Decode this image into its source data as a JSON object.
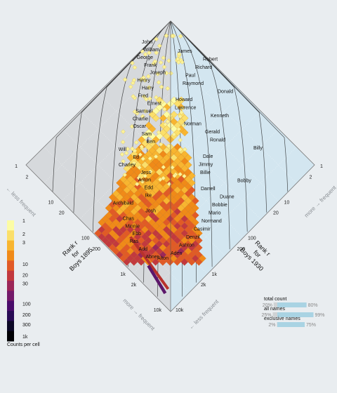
{
  "left_axis": {
    "title_line1": "Rank r",
    "title_line2": "for",
    "title_line3": "Boys 1895",
    "dir_top": "← less frequent",
    "dir_bottom": "more → frequent"
  },
  "right_axis": {
    "title_line1": "Rank r",
    "title_line2": "for",
    "title_line3": "Boys 1930",
    "dir_top": "more → frequent",
    "dir_bottom": "← less frequent"
  },
  "colors": {
    "left_panel": "#d6d9dc",
    "right_panel": "#d3e6f0",
    "balance_bar": "#a9d3e3",
    "balance_rest": "#cfd2d4",
    "marker_fill": "#fbf29a",
    "marker_stroke": "#e1c85c"
  },
  "chart_data": {
    "type": "heatmap",
    "description_note": "",
    "axis_scale": "log",
    "tick_labels": [
      "1",
      "2",
      "5",
      "10",
      "20",
      "50",
      "100",
      "200",
      "500",
      "1k",
      "2k",
      "5k",
      "10k"
    ],
    "labeled_ticks": [
      "1",
      "2",
      "10",
      "20",
      "100",
      "200",
      "1k",
      "2k",
      "10k"
    ],
    "left_names": [
      "John",
      "William",
      "George",
      "Frank",
      "Joseph",
      "Henry",
      "Harry",
      "Fred",
      "Ernest",
      "Samuel",
      "Charlie",
      "Oscar",
      "Sam",
      "Ben",
      "Will",
      "Ed",
      "Charley",
      "Jess",
      "Anton",
      "Edd",
      "Ike",
      "Archibald",
      "Josh",
      "Chas",
      "Minnie",
      "Ebb",
      "Ras",
      "Add",
      "Abner"
    ],
    "right_names": [
      "James",
      "Robert",
      "Richard",
      "Paul",
      "Raymond",
      "Donald",
      "Howard",
      "Lawrence",
      "Kenneth",
      "Norman",
      "Gerald",
      "Ronald",
      "Billy",
      "Dale",
      "Jimmy",
      "Billie",
      "Bobby",
      "Darrell",
      "Duane",
      "Bobbie",
      "Mario",
      "Normand",
      "Casimir",
      "Denzil",
      "Ashton",
      "Aden"
    ],
    "center_names": [
      "Alton"
    ],
    "colorbar": {
      "title": "Counts per cell",
      "labels": [
        "1",
        "2",
        "3",
        "10",
        "20",
        "30",
        "100",
        "200",
        "300",
        "1k"
      ],
      "colors": [
        "#fcfca4",
        "#fbdf6a",
        "#f8b530",
        "#f08a18",
        "#e15a26",
        "#c2393e",
        "#9c2758",
        "#741a6a",
        "#4a0c6b",
        "#290b55",
        "#0c0826",
        "#000004"
      ]
    },
    "balance": {
      "rows": [
        {
          "label": "total count",
          "left": "20%",
          "right": "80%",
          "left_value": 0.2,
          "right_value": 0.8
        },
        {
          "label": "all names",
          "left": "25%",
          "right": "99%",
          "left_value": 0.25,
          "right_value": 0.99
        },
        {
          "label": "exclusive names",
          "left": "2%",
          "right": "75%",
          "left_value": 0.02,
          "right_value": 0.75
        }
      ]
    }
  }
}
